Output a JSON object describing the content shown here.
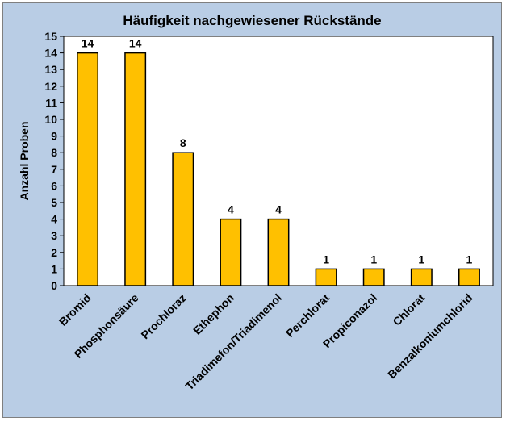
{
  "chart_data": {
    "type": "bar",
    "title": "Häufigkeit nachgewiesener Rückstände",
    "xlabel": "",
    "ylabel": "Anzahl Proben",
    "categories": [
      "Bromid",
      "Phosphonsäure",
      "Prochloraz",
      "Ethephon",
      "Triadimefon/Triadimenol",
      "Perchlorat",
      "Propiconazol",
      "Chlorat",
      "Benzalkoniumchlorid"
    ],
    "values": [
      14,
      14,
      8,
      4,
      4,
      1,
      1,
      1,
      1
    ],
    "ylim": [
      0,
      15
    ],
    "yticks": [
      0,
      1,
      2,
      3,
      4,
      5,
      6,
      7,
      8,
      9,
      10,
      11,
      12,
      13,
      14,
      15
    ],
    "grid": false,
    "legend": "none",
    "data_labels": true,
    "colors": {
      "bar_fill": "#ffc000",
      "bar_stroke": "#000000",
      "plot_bg": "#ffffff",
      "chart_bg": "#b9cde5"
    }
  }
}
